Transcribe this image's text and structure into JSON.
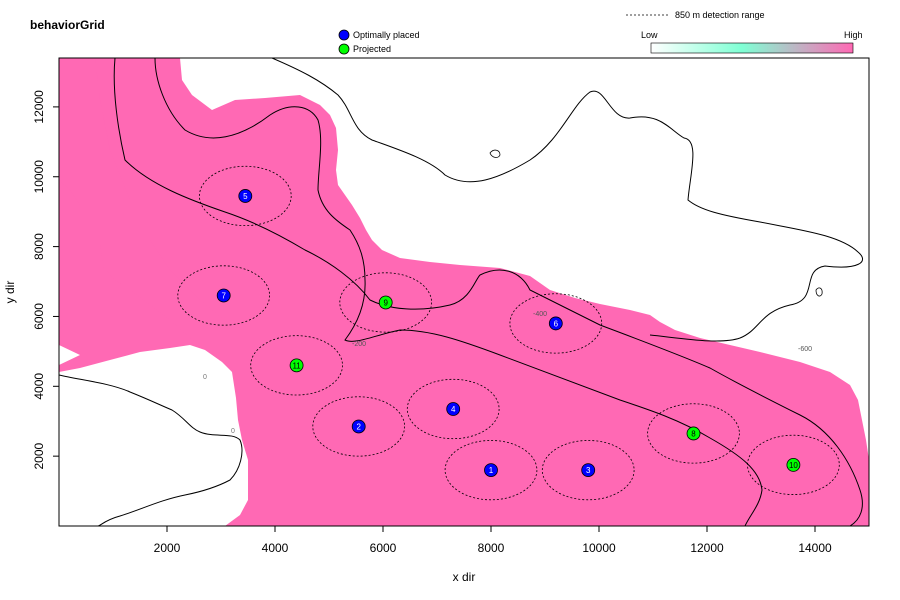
{
  "chart_data": {
    "type": "scatter",
    "title": "behaviorGrid",
    "xlabel": "x dir",
    "ylabel": "y dir",
    "xlim": [
      0,
      15000
    ],
    "ylim": [
      0,
      13400
    ],
    "x_ticks": [
      2000,
      4000,
      6000,
      8000,
      10000,
      12000,
      14000
    ],
    "y_ticks": [
      2000,
      4000,
      6000,
      8000,
      10000,
      12000
    ],
    "detection_range_label": "850 m detection range",
    "detection_radius": 850,
    "colorbar": {
      "low_label": "Low",
      "high_label": "High",
      "low_color": "#ffffff",
      "mid_color": "#7fffd4",
      "high_color": "#ff69b4"
    },
    "grid_fill_color": "#ff69b4",
    "series": [
      {
        "name": "Optimally placed",
        "color": "#0000ff",
        "points": [
          {
            "label": "1",
            "x": 8000,
            "y": 1600
          },
          {
            "label": "2",
            "x": 5550,
            "y": 2850
          },
          {
            "label": "3",
            "x": 9800,
            "y": 1600
          },
          {
            "label": "4",
            "x": 7300,
            "y": 3350
          },
          {
            "label": "5",
            "x": 3450,
            "y": 9450
          },
          {
            "label": "6",
            "x": 9200,
            "y": 5800
          },
          {
            "label": "7",
            "x": 3050,
            "y": 6600
          }
        ]
      },
      {
        "name": "Projected",
        "color": "#00ff00",
        "points": [
          {
            "label": "8",
            "x": 11750,
            "y": 2650
          },
          {
            "label": "9",
            "x": 6050,
            "y": 6400
          },
          {
            "label": "10",
            "x": 13600,
            "y": 1750
          },
          {
            "label": "11",
            "x": 4400,
            "y": 4600
          }
        ]
      }
    ],
    "contour_labels": [
      "0",
      "0",
      "-200",
      "-400",
      "-600"
    ]
  }
}
